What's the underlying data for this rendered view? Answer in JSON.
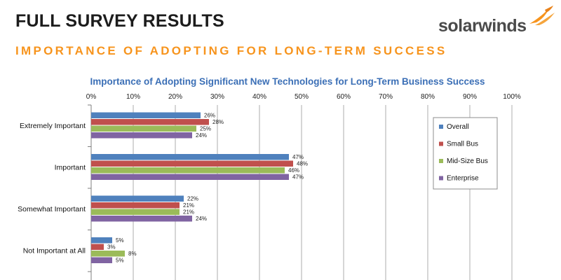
{
  "slide": {
    "title": "FULL SURVEY RESULTS",
    "subtitle": "IMPORTANCE OF ADOPTING FOR LONG-TERM SUCCESS",
    "brand": "solarwinds",
    "brand_color": "#f7941d"
  },
  "chart_data": {
    "type": "bar",
    "orientation": "horizontal",
    "title": "Importance of Adopting Significant New Technologies for Long-Term Business Success",
    "categories": [
      "Extremely Important",
      "Important",
      "Somewhat Important",
      "Not Important at All"
    ],
    "series": [
      {
        "name": "Overall",
        "color": "#4f81bd",
        "values": [
          26,
          47,
          22,
          5
        ]
      },
      {
        "name": "Small Bus",
        "color": "#c0504d",
        "values": [
          28,
          48,
          21,
          3
        ]
      },
      {
        "name": "Mid-Size Bus",
        "color": "#9bbb59",
        "values": [
          25,
          46,
          21,
          8
        ]
      },
      {
        "name": "Enterprise",
        "color": "#8064a2",
        "values": [
          24,
          47,
          24,
          5
        ]
      }
    ],
    "xlim": [
      0,
      100
    ],
    "xticks": [
      0,
      10,
      20,
      30,
      40,
      50,
      60,
      70,
      80,
      90,
      100
    ],
    "tick_suffix": "%",
    "value_suffix": "%",
    "legend_position": "right",
    "grid": true
  }
}
